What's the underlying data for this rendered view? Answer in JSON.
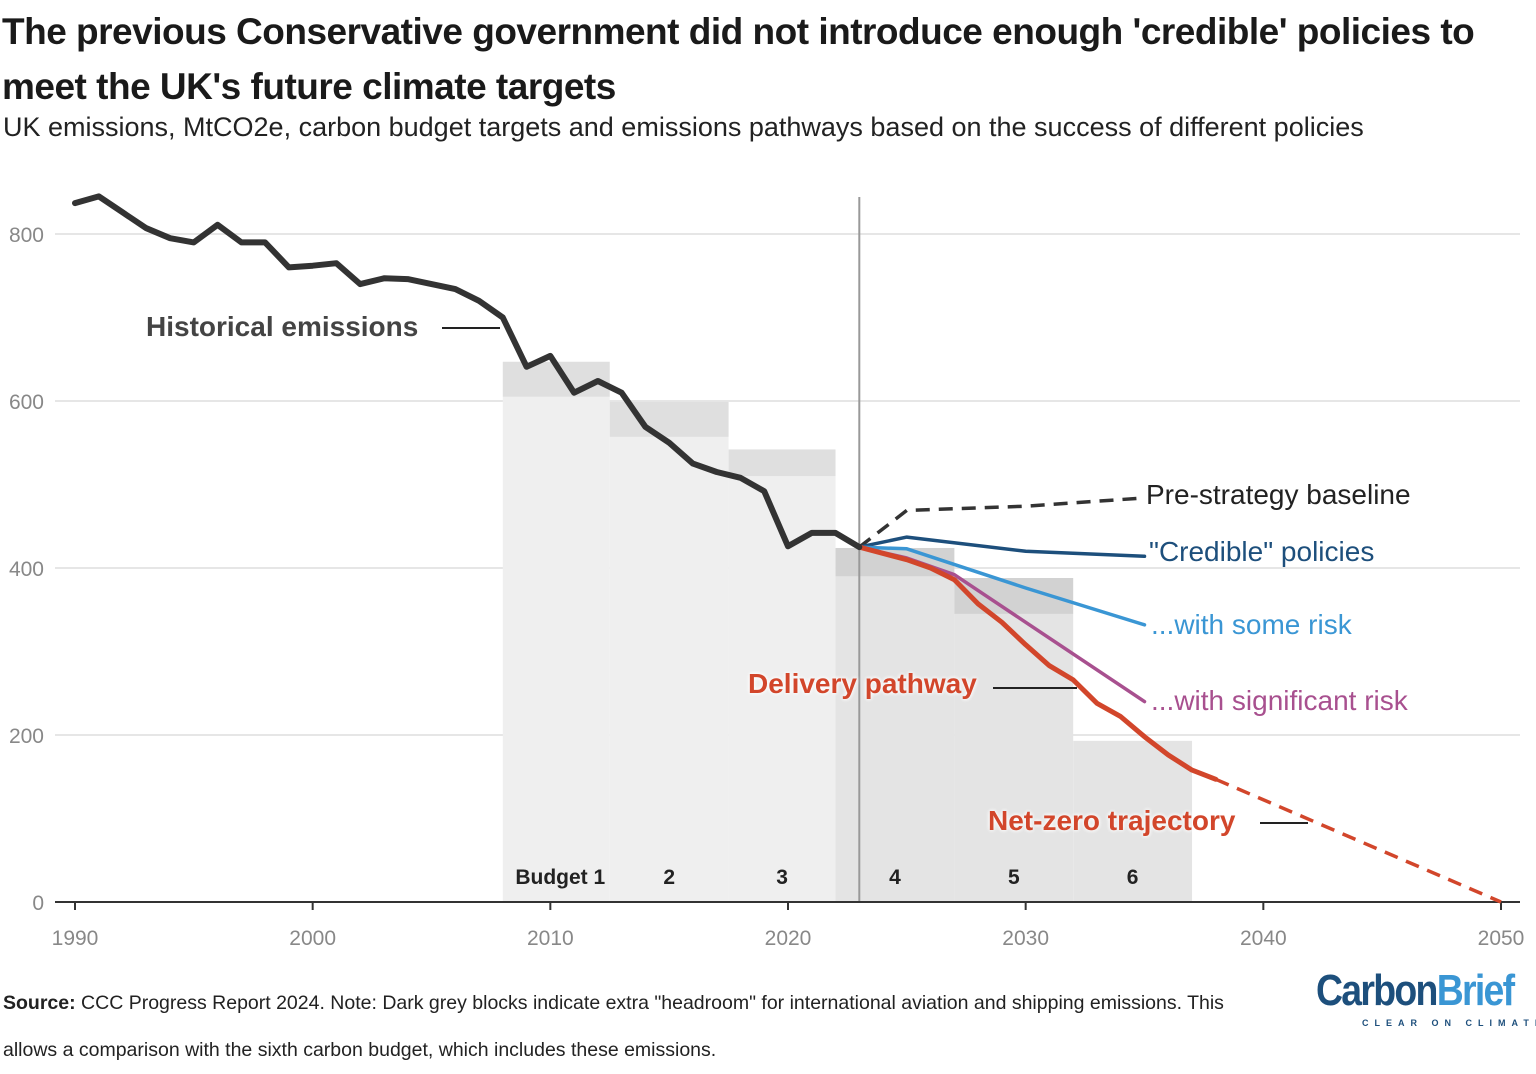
{
  "title": "The previous Conservative government did not introduce enough 'credible' policies to meet the UK's future climate targets",
  "subtitle": "UK emissions, MtCO2e, carbon budget targets and emissions pathways based on the success of different policies",
  "footer": {
    "source_label": "Source:",
    "source_text": " CCC Progress Report 2024. Note: Dark grey blocks indicate extra \"headroom\" for international aviation and shipping emissions. This allows a comparison with the sixth carbon budget, which includes these emissions."
  },
  "logo": {
    "part1": "Carbon",
    "part2": "Brief",
    "tagline": "CLEAR ON CLIMATE",
    "color1": "#1d4f7c",
    "color2": "#3a96d4"
  },
  "chart_data": {
    "type": "line",
    "xlim": [
      1990,
      2050
    ],
    "ylim": [
      0,
      850
    ],
    "x_ticks": [
      1990,
      2000,
      2010,
      2020,
      2030,
      2040,
      2050
    ],
    "y_ticks": [
      0,
      200,
      400,
      600,
      800
    ],
    "grid": "horizontal",
    "reference_line_year": 2023,
    "budgets": [
      {
        "label": "Budget 1",
        "start": 2008,
        "end": 2012.5,
        "value": 605,
        "headroom_top": 647,
        "future": false
      },
      {
        "label": "2",
        "start": 2012.5,
        "end": 2017.5,
        "value": 557,
        "headroom_top": 599,
        "future": false
      },
      {
        "label": "3",
        "start": 2017.5,
        "end": 2022,
        "value": 510,
        "headroom_top": 542,
        "future": false
      },
      {
        "label": "4",
        "start": 2022,
        "end": 2027,
        "value": 390,
        "headroom_top": 424,
        "future": true
      },
      {
        "label": "5",
        "start": 2027,
        "end": 2032,
        "value": 345,
        "headroom_top": 388,
        "future": true
      },
      {
        "label": "6",
        "start": 2032,
        "end": 2037,
        "value": 193,
        "headroom_top": null,
        "future": true
      }
    ],
    "series": [
      {
        "name": "Historical emissions",
        "color": "#333333",
        "dash": false,
        "width": 6,
        "x": [
          1990,
          1991,
          1992,
          1993,
          1994,
          1995,
          1996,
          1997,
          1998,
          1999,
          2000,
          2001,
          2002,
          2003,
          2004,
          2005,
          2006,
          2007,
          2008,
          2009,
          2010,
          2011,
          2012,
          2013,
          2014,
          2015,
          2016,
          2017,
          2018,
          2019,
          2020,
          2021,
          2022,
          2023
        ],
        "y": [
          837,
          845,
          826,
          807,
          795,
          790,
          811,
          790,
          790,
          760,
          762,
          765,
          740,
          747,
          746,
          740,
          734,
          720,
          700,
          641,
          654,
          610,
          624,
          610,
          569,
          550,
          525,
          515,
          508,
          492,
          426,
          442,
          442,
          425
        ]
      },
      {
        "name": "Pre-strategy baseline",
        "color": "#333333",
        "dash": true,
        "width": 3.5,
        "x": [
          2023,
          2025,
          2030,
          2035
        ],
        "y": [
          425,
          469,
          474,
          484
        ]
      },
      {
        "name": "\"Credible\" policies",
        "color": "#1d4f7c",
        "dash": false,
        "width": 3.5,
        "x": [
          2023,
          2025,
          2030,
          2035
        ],
        "y": [
          425,
          437,
          420,
          414
        ]
      },
      {
        "name": "...with some risk",
        "color": "#3a96d4",
        "dash": false,
        "width": 3.5,
        "x": [
          2023,
          2025,
          2030,
          2035
        ],
        "y": [
          425,
          423,
          376,
          332
        ]
      },
      {
        "name": "...with significant risk",
        "color": "#a8508f",
        "dash": false,
        "width": 3.5,
        "x": [
          2023,
          2025,
          2027,
          2030,
          2035
        ],
        "y": [
          425,
          412,
          392,
          335,
          240
        ]
      },
      {
        "name": "Delivery pathway",
        "color": "#d2462b",
        "dash": false,
        "width": 5,
        "x": [
          2023,
          2025,
          2026,
          2027,
          2028,
          2029,
          2030,
          2031,
          2032,
          2033,
          2034,
          2035,
          2036,
          2037,
          2038
        ],
        "y": [
          425,
          410,
          400,
          386,
          357,
          335,
          308,
          283,
          266,
          238,
          222,
          198,
          176,
          158,
          147
        ]
      },
      {
        "name": "Net-zero trajectory",
        "color": "#d2462b",
        "dash": true,
        "width": 3.5,
        "x": [
          2038,
          2050
        ],
        "y": [
          147,
          0
        ]
      }
    ]
  }
}
